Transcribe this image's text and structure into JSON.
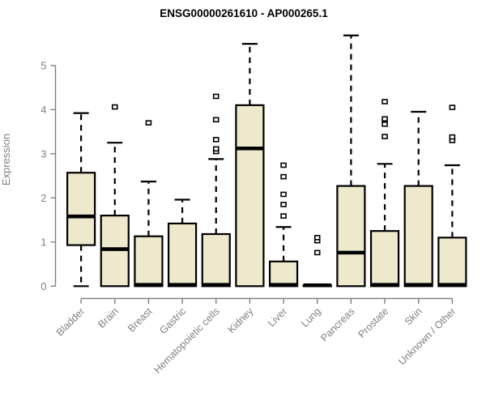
{
  "chart_data": {
    "type": "boxplot",
    "title": "ENSG00000261610 - AP000265.1",
    "ylabel": "Expression",
    "xlabel": "",
    "ylim": [
      0,
      5.7
    ],
    "yticks": [
      0,
      1,
      2,
      3,
      4,
      5
    ],
    "grid": false,
    "legend": "none",
    "categories": [
      "Bladder",
      "Brain",
      "Breast",
      "Gastric",
      "Hematopoietic cells",
      "Kidney",
      "Liver",
      "Lung",
      "Pancreas",
      "Prostate",
      "Skin",
      "Unknown / Other"
    ],
    "series": [
      {
        "name": "Bladder",
        "min": 0,
        "q1": 0.93,
        "median": 1.58,
        "q3": 2.57,
        "max": 3.92,
        "outliers": []
      },
      {
        "name": "Brain",
        "min": 0,
        "q1": 0,
        "median": 0.84,
        "q3": 1.6,
        "max": 3.25,
        "outliers": [
          4.06
        ]
      },
      {
        "name": "Breast",
        "min": 0,
        "q1": 0,
        "median": 0.03,
        "q3": 1.13,
        "max": 2.37,
        "outliers": [
          3.7
        ]
      },
      {
        "name": "Gastric",
        "min": 0,
        "q1": 0,
        "median": 0.03,
        "q3": 1.42,
        "max": 1.96,
        "outliers": []
      },
      {
        "name": "Hematopoietic cells",
        "min": 0,
        "q1": 0,
        "median": 0.03,
        "q3": 1.18,
        "max": 2.88,
        "outliers": [
          3.05,
          3.11,
          3.32,
          3.77,
          4.3
        ]
      },
      {
        "name": "Kidney",
        "min": 0,
        "q1": 0,
        "median": 3.12,
        "q3": 4.1,
        "max": 5.49,
        "outliers": []
      },
      {
        "name": "Liver",
        "min": 0,
        "q1": 0,
        "median": 0.03,
        "q3": 0.56,
        "max": 1.34,
        "outliers": [
          1.59,
          1.85,
          2.08,
          2.48,
          2.74
        ]
      },
      {
        "name": "Lung",
        "min": 0,
        "q1": 0,
        "median": 0.02,
        "q3": 0.02,
        "max": 0.02,
        "outliers": [
          0.76,
          1.03,
          1.1
        ]
      },
      {
        "name": "Pancreas",
        "min": 0,
        "q1": 0,
        "median": 0.76,
        "q3": 2.27,
        "max": 5.68,
        "outliers": []
      },
      {
        "name": "Prostate",
        "min": 0,
        "q1": 0,
        "median": 0.03,
        "q3": 1.25,
        "max": 2.77,
        "outliers": [
          3.39,
          3.67,
          3.79,
          4.18
        ]
      },
      {
        "name": "Skin",
        "min": 0,
        "q1": 0,
        "median": 0.03,
        "q3": 2.27,
        "max": 3.95,
        "outliers": []
      },
      {
        "name": "Unknown / Other",
        "min": 0,
        "q1": 0,
        "median": 0.03,
        "q3": 1.1,
        "max": 2.74,
        "outliers": [
          3.3,
          3.38,
          4.05
        ]
      }
    ],
    "colors": {
      "box_fill": "#EEE8CD",
      "box_border": "#000000",
      "median": "#000000",
      "whisker": "#000000",
      "outlier_stroke": "#000000",
      "outlier_fill": "#ffffff",
      "axis": "#808080",
      "tick_label": "#7f7f7f",
      "title": "#000000",
      "background": "#ffffff"
    }
  }
}
